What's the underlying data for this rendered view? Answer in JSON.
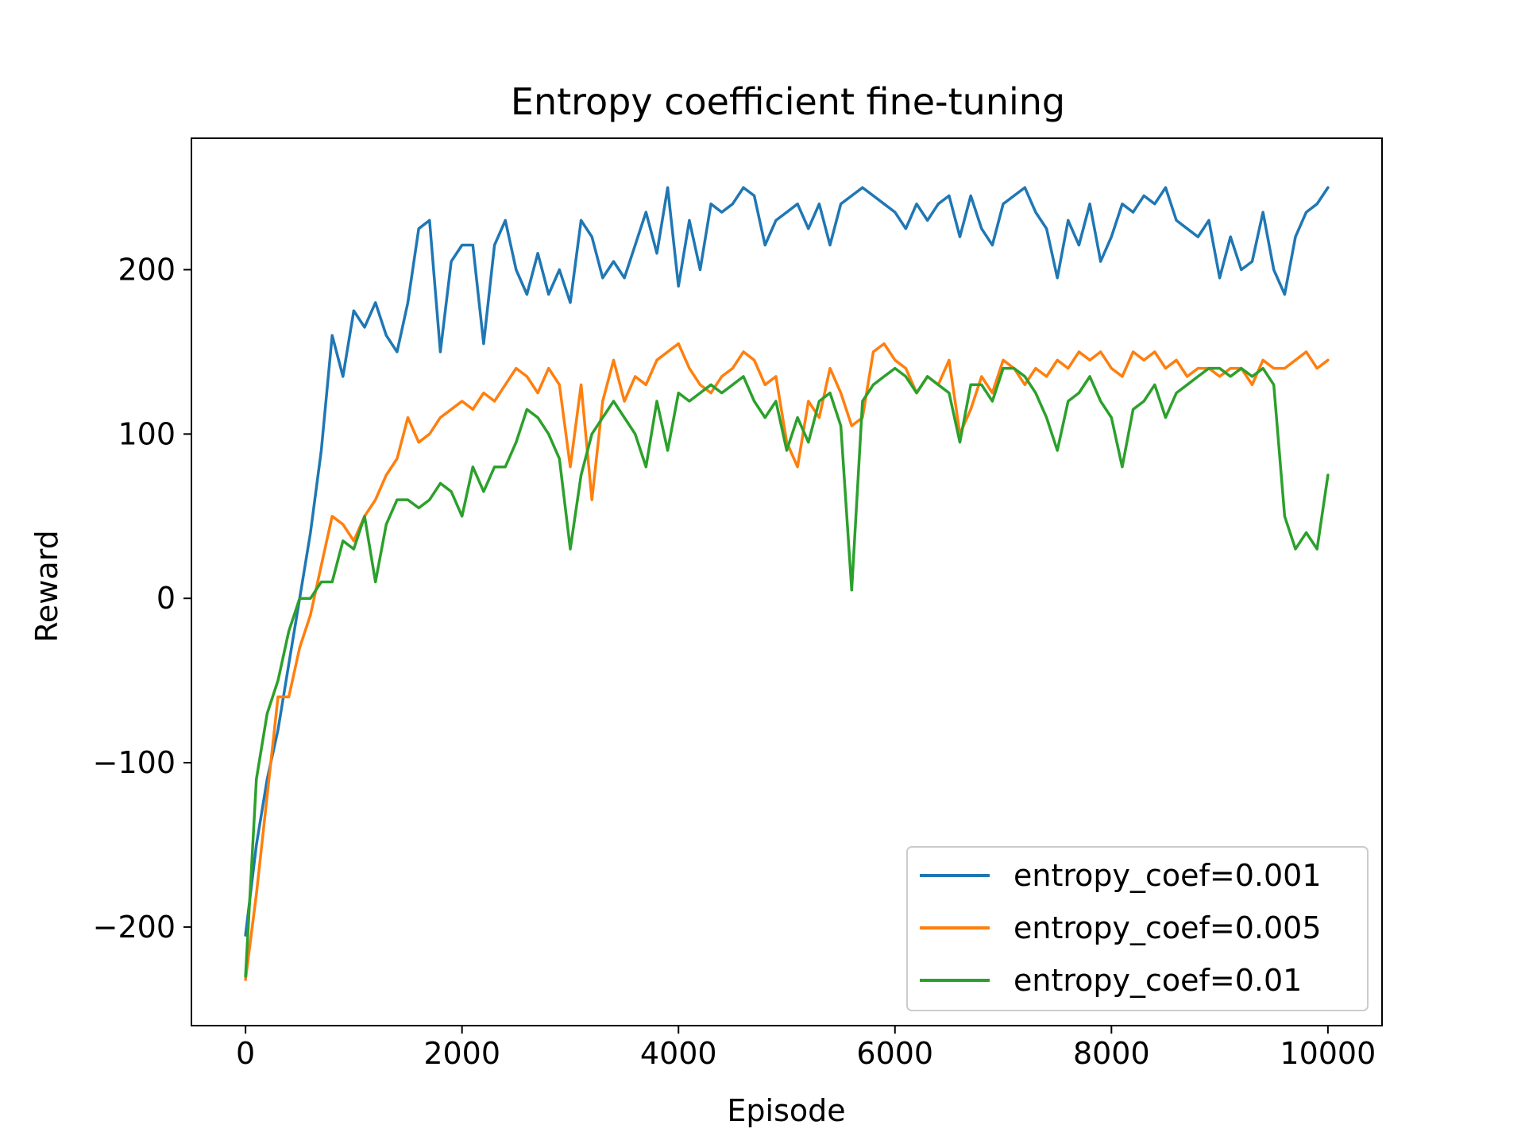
{
  "chart_data": {
    "type": "line",
    "title": "Entropy coefficient fine-tuning",
    "xlabel": "Episode",
    "ylabel": "Reward",
    "xlim": [
      -500,
      10500
    ],
    "ylim": [
      -260,
      280
    ],
    "xticks": [
      0,
      2000,
      4000,
      6000,
      8000,
      10000
    ],
    "xtick_labels": [
      "0",
      "2000",
      "4000",
      "6000",
      "8000",
      "10000"
    ],
    "yticks": [
      -200,
      -100,
      0,
      100,
      200
    ],
    "ytick_labels": [
      "−200",
      "−100",
      "0",
      "100",
      "200"
    ],
    "grid": false,
    "legend_position": "lower right",
    "series": [
      {
        "name": "entropy_coef=0.001",
        "color": "#1f77b4",
        "x": [
          0,
          100,
          200,
          300,
          400,
          500,
          600,
          700,
          800,
          900,
          1000,
          1100,
          1200,
          1300,
          1400,
          1500,
          1600,
          1700,
          1800,
          1900,
          2000,
          2100,
          2200,
          2300,
          2400,
          2500,
          2600,
          2700,
          2800,
          2900,
          3000,
          3100,
          3200,
          3300,
          3400,
          3500,
          3600,
          3700,
          3800,
          3900,
          4000,
          4100,
          4200,
          4300,
          4400,
          4500,
          4600,
          4700,
          4800,
          4900,
          5000,
          5100,
          5200,
          5300,
          5400,
          5500,
          5600,
          5700,
          5800,
          5900,
          6000,
          6100,
          6200,
          6300,
          6400,
          6500,
          6600,
          6700,
          6800,
          6900,
          7000,
          7100,
          7200,
          7300,
          7400,
          7500,
          7600,
          7700,
          7800,
          7900,
          8000,
          8100,
          8200,
          8300,
          8400,
          8500,
          8600,
          8700,
          8800,
          8900,
          9000,
          9100,
          9200,
          9300,
          9400,
          9500,
          9600,
          9700,
          9800,
          9900,
          10000
        ],
        "y": [
          -205,
          -150,
          -110,
          -80,
          -40,
          0,
          40,
          90,
          160,
          135,
          175,
          165,
          180,
          160,
          150,
          180,
          225,
          230,
          150,
          205,
          215,
          215,
          155,
          215,
          230,
          200,
          185,
          210,
          185,
          200,
          180,
          230,
          220,
          195,
          205,
          195,
          215,
          235,
          210,
          250,
          190,
          230,
          200,
          240,
          235,
          240,
          250,
          245,
          215,
          230,
          235,
          240,
          225,
          240,
          215,
          240,
          245,
          250,
          245,
          240,
          235,
          225,
          240,
          230,
          240,
          245,
          220,
          245,
          225,
          215,
          240,
          245,
          250,
          235,
          225,
          195,
          230,
          215,
          240,
          205,
          220,
          240,
          235,
          245,
          240,
          250,
          230,
          225,
          220,
          230,
          195,
          220,
          200,
          205,
          235,
          200,
          185,
          220,
          235,
          240,
          250
        ]
      },
      {
        "name": "entropy_coef=0.005",
        "color": "#ff7f0e",
        "x": [
          0,
          100,
          200,
          300,
          400,
          500,
          600,
          700,
          800,
          900,
          1000,
          1100,
          1200,
          1300,
          1400,
          1500,
          1600,
          1700,
          1800,
          1900,
          2000,
          2100,
          2200,
          2300,
          2400,
          2500,
          2600,
          2700,
          2800,
          2900,
          3000,
          3100,
          3200,
          3300,
          3400,
          3500,
          3600,
          3700,
          3800,
          3900,
          4000,
          4100,
          4200,
          4300,
          4400,
          4500,
          4600,
          4700,
          4800,
          4900,
          5000,
          5100,
          5200,
          5300,
          5400,
          5500,
          5600,
          5700,
          5800,
          5900,
          6000,
          6100,
          6200,
          6300,
          6400,
          6500,
          6600,
          6700,
          6800,
          6900,
          7000,
          7100,
          7200,
          7300,
          7400,
          7500,
          7600,
          7700,
          7800,
          7900,
          8000,
          8100,
          8200,
          8300,
          8400,
          8500,
          8600,
          8700,
          8800,
          8900,
          9000,
          9100,
          9200,
          9300,
          9400,
          9500,
          9600,
          9700,
          9800,
          9900,
          10000
        ],
        "y": [
          -232,
          -180,
          -120,
          -60,
          -60,
          -30,
          -10,
          20,
          50,
          45,
          35,
          50,
          60,
          75,
          85,
          110,
          95,
          100,
          110,
          115,
          120,
          115,
          125,
          120,
          130,
          140,
          135,
          125,
          140,
          130,
          80,
          130,
          60,
          120,
          145,
          120,
          135,
          130,
          145,
          150,
          155,
          140,
          130,
          125,
          135,
          140,
          150,
          145,
          130,
          135,
          95,
          80,
          120,
          110,
          140,
          125,
          105,
          110,
          150,
          155,
          145,
          140,
          125,
          135,
          130,
          145,
          100,
          115,
          135,
          125,
          145,
          140,
          130,
          140,
          135,
          145,
          140,
          150,
          145,
          150,
          140,
          135,
          150,
          145,
          150,
          140,
          145,
          135,
          140,
          140,
          135,
          140,
          140,
          130,
          145,
          140,
          140,
          145,
          150,
          140,
          145
        ]
      },
      {
        "name": "entropy_coef=0.01",
        "color": "#2ca02c",
        "x": [
          0,
          100,
          200,
          300,
          400,
          500,
          600,
          700,
          800,
          900,
          1000,
          1100,
          1200,
          1300,
          1400,
          1500,
          1600,
          1700,
          1800,
          1900,
          2000,
          2100,
          2200,
          2300,
          2400,
          2500,
          2600,
          2700,
          2800,
          2900,
          3000,
          3100,
          3200,
          3300,
          3400,
          3500,
          3600,
          3700,
          3800,
          3900,
          4000,
          4100,
          4200,
          4300,
          4400,
          4500,
          4600,
          4700,
          4800,
          4900,
          5000,
          5100,
          5200,
          5300,
          5400,
          5500,
          5600,
          5700,
          5800,
          5900,
          6000,
          6100,
          6200,
          6300,
          6400,
          6500,
          6600,
          6700,
          6800,
          6900,
          7000,
          7100,
          7200,
          7300,
          7400,
          7500,
          7600,
          7700,
          7800,
          7900,
          8000,
          8100,
          8200,
          8300,
          8400,
          8500,
          8600,
          8700,
          8800,
          8900,
          9000,
          9100,
          9200,
          9300,
          9400,
          9500,
          9600,
          9700,
          9800,
          9900,
          10000
        ],
        "y": [
          -230,
          -110,
          -70,
          -50,
          -20,
          0,
          0,
          10,
          10,
          35,
          30,
          50,
          10,
          45,
          60,
          60,
          55,
          60,
          70,
          65,
          50,
          80,
          65,
          80,
          80,
          95,
          115,
          110,
          100,
          85,
          30,
          75,
          100,
          110,
          120,
          110,
          100,
          80,
          120,
          90,
          125,
          120,
          125,
          130,
          125,
          130,
          135,
          120,
          110,
          120,
          90,
          110,
          95,
          120,
          125,
          105,
          5,
          120,
          130,
          135,
          140,
          135,
          125,
          135,
          130,
          125,
          95,
          130,
          130,
          120,
          140,
          140,
          135,
          125,
          110,
          90,
          120,
          125,
          135,
          120,
          110,
          80,
          115,
          120,
          130,
          110,
          125,
          130,
          135,
          140,
          140,
          135,
          140,
          135,
          140,
          130,
          50,
          30,
          40,
          30,
          75
        ]
      }
    ]
  }
}
